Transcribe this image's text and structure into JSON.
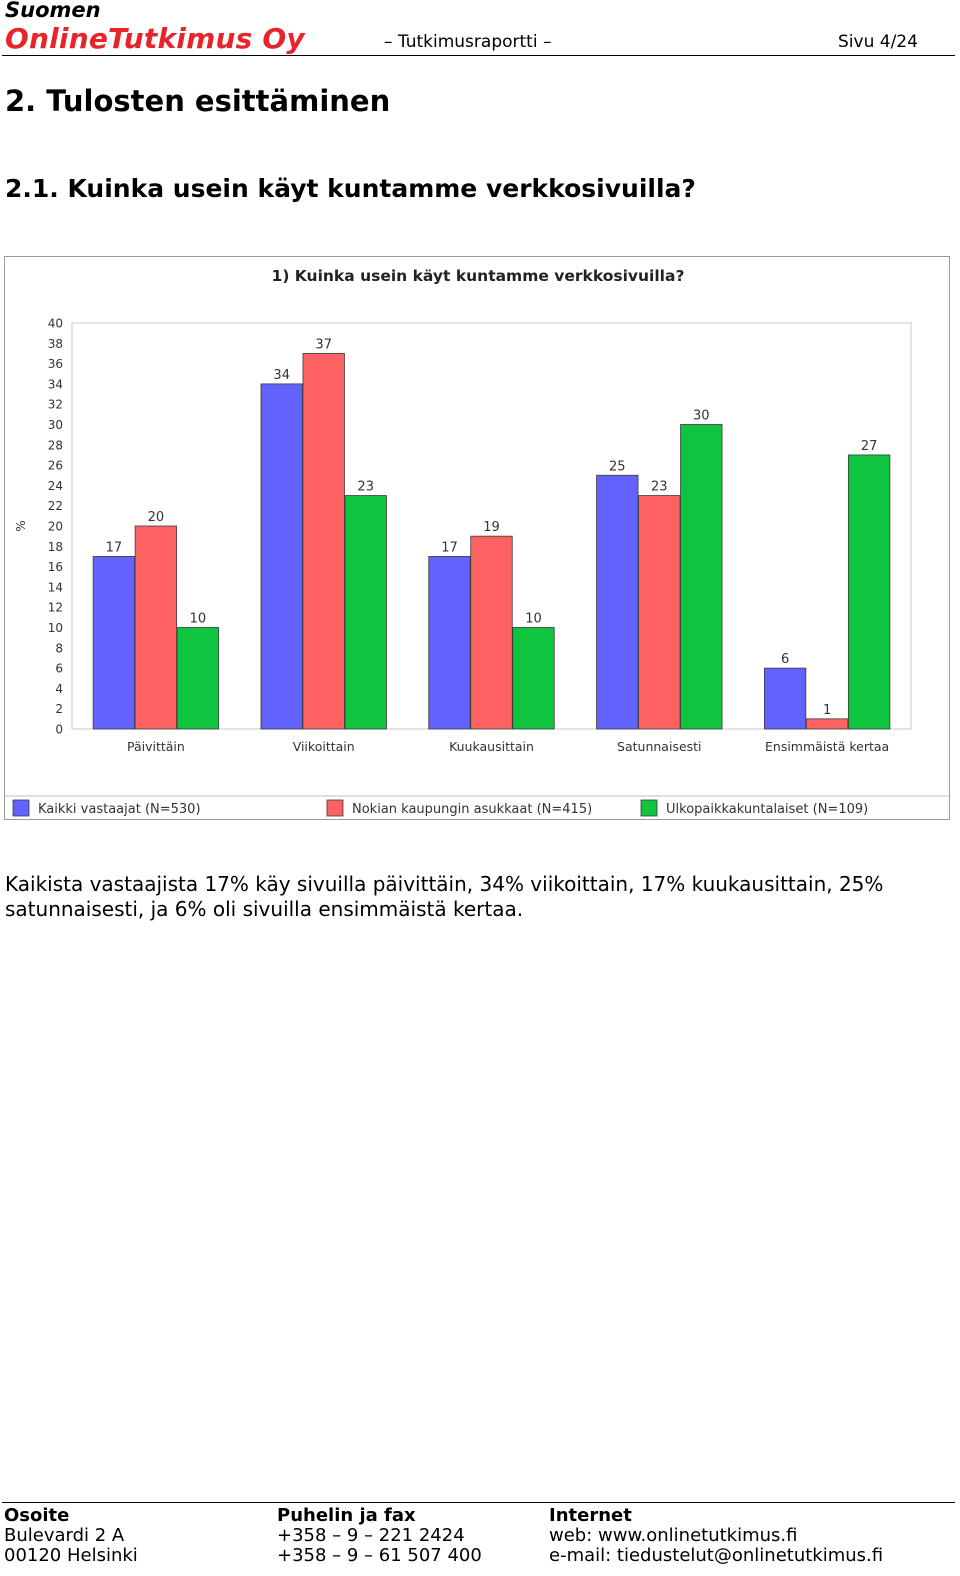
{
  "header": {
    "company_line1": "Suomen",
    "company_line2": "OnlineTutkimus Oy",
    "document_label": "– Tutkimusraportti –",
    "page_label": "Sivu 4/24"
  },
  "section": {
    "title": "2. Tulosten esittäminen",
    "subtitle": "2.1. Kuinka usein käyt kuntamme verkkosivuilla?"
  },
  "chart_data": {
    "type": "bar",
    "title": "1) Kuinka usein käyt kuntamme verkkosivuilla?",
    "ylabel": "%",
    "xlabel": "",
    "ylim": [
      0,
      40
    ],
    "yticks": [
      0,
      2,
      4,
      6,
      8,
      10,
      12,
      14,
      16,
      18,
      20,
      22,
      24,
      26,
      28,
      30,
      32,
      34,
      36,
      38,
      40
    ],
    "categories": [
      "Päivittäin",
      "Viikoittain",
      "Kuukausittain",
      "Satunnaisesti",
      "Ensimmäistä kertaa"
    ],
    "series": [
      {
        "name": "Kaikki vastaajat (N=530)",
        "color": "#6262ff",
        "values": [
          17,
          34,
          17,
          25,
          6
        ]
      },
      {
        "name": "Nokian kaupungin asukkaat (N=415)",
        "color": "#ff6262",
        "values": [
          20,
          37,
          19,
          23,
          1
        ]
      },
      {
        "name": "Ulkopaikkakuntalaiset (N=109)",
        "color": "#0fc43f",
        "values": [
          10,
          23,
          10,
          30,
          27
        ]
      }
    ],
    "grid": false,
    "legend_position": "bottom"
  },
  "body": {
    "paragraph": "Kaikista vastaajista 17% käy sivuilla päivittäin, 34% viikoittain, 17% kuukausittain, 25% satunnaisesti, ja 6% oli sivuilla ensimmäistä kertaa."
  },
  "footer": {
    "address": {
      "title": "Osoite",
      "line1": "Bulevardi 2 A",
      "line2": "00120 Helsinki"
    },
    "phone": {
      "title": "Puhelin ja fax",
      "line1": "+358 – 9 – 221 2424",
      "line2": "+358 – 9 – 61 507 400"
    },
    "internet": {
      "title": "Internet",
      "line1": "web: www.onlinetutkimus.fi",
      "line2": "e-mail: tiedustelut@onlinetutkimus.fi"
    }
  }
}
